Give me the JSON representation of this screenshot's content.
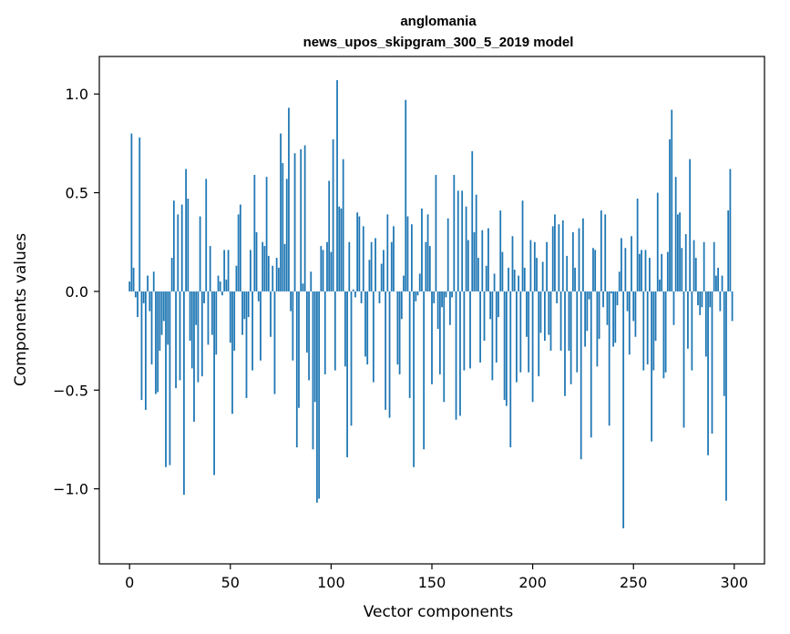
{
  "chart_data": {
    "type": "bar",
    "title_line1": "anglomania",
    "title_line2": "news_upos_skipgram_300_5_2019 model",
    "xlabel": "Vector components",
    "ylabel": "Components values",
    "xlim": [
      -15,
      315
    ],
    "ylim": [
      -1.38,
      1.19
    ],
    "xticks": [
      0,
      50,
      100,
      150,
      200,
      250,
      300
    ],
    "yticks": [
      -1.0,
      -0.5,
      0.0,
      0.5,
      1.0
    ],
    "ytick_labels": [
      "−1.0",
      "−0.5",
      "0.0",
      "0.5",
      "1.0"
    ],
    "grid": false,
    "bar_color": "#1f77b4",
    "values": [
      0.05,
      0.8,
      0.12,
      -0.03,
      -0.13,
      0.78,
      -0.55,
      -0.06,
      -0.6,
      0.08,
      -0.1,
      -0.37,
      0.1,
      -0.52,
      -0.51,
      -0.3,
      -0.22,
      -0.15,
      -0.89,
      -0.27,
      -0.88,
      0.17,
      0.46,
      -0.49,
      0.39,
      -0.45,
      0.44,
      -1.03,
      0.62,
      0.47,
      -0.25,
      -0.39,
      -0.66,
      -0.17,
      -0.46,
      0.38,
      -0.43,
      -0.06,
      0.57,
      -0.27,
      0.23,
      -0.22,
      -0.93,
      -0.32,
      0.08,
      0.05,
      -0.02,
      0.21,
      0.06,
      0.21,
      -0.26,
      -0.62,
      -0.3,
      0.13,
      0.39,
      0.44,
      -0.22,
      -0.14,
      -0.54,
      -0.13,
      0.21,
      -0.4,
      0.59,
      0.3,
      -0.05,
      -0.35,
      0.25,
      0.23,
      0.58,
      0.18,
      -0.23,
      0.13,
      -0.52,
      0.17,
      0.12,
      0.8,
      0.65,
      0.24,
      0.57,
      0.93,
      -0.1,
      -0.35,
      0.7,
      -0.79,
      -0.59,
      0.72,
      0.04,
      0.74,
      -0.31,
      -0.45,
      0.1,
      -0.8,
      -0.56,
      -1.07,
      -1.05,
      0.23,
      0.21,
      -0.42,
      0.25,
      0.56,
      0.2,
      0.77,
      -0.4,
      1.07,
      0.43,
      0.42,
      0.67,
      -0.38,
      -0.84,
      0.25,
      -0.68,
      0.01,
      -0.03,
      0.4,
      0.38,
      -0.06,
      0.33,
      -0.33,
      -0.37,
      0.16,
      0.25,
      -0.46,
      0.27,
      0.0,
      -0.06,
      0.14,
      0.21,
      -0.6,
      0.39,
      -0.64,
      0.25,
      0.33,
      0.0,
      -0.37,
      -0.42,
      -0.14,
      0.08,
      0.97,
      0.38,
      -0.54,
      0.34,
      -0.89,
      -0.05,
      -0.02,
      0.09,
      0.42,
      -0.8,
      0.25,
      0.39,
      0.23,
      -0.47,
      -0.06,
      0.59,
      -0.19,
      -0.42,
      -0.08,
      -0.56,
      -0.03,
      0.37,
      -0.17,
      -0.03,
      0.59,
      -0.65,
      0.51,
      -0.63,
      0.51,
      -0.4,
      0.43,
      0.26,
      -0.39,
      0.71,
      0.3,
      0.49,
      0.17,
      -0.36,
      0.31,
      -0.25,
      0.13,
      0.32,
      -0.14,
      -0.45,
      0.09,
      -0.36,
      -0.13,
      0.41,
      0.2,
      -0.55,
      -0.58,
      0.12,
      -0.79,
      0.28,
      0.11,
      -0.46,
      0.08,
      -0.41,
      0.46,
      0.12,
      -0.23,
      -0.41,
      0.26,
      -0.56,
      0.25,
      0.17,
      -0.43,
      -0.21,
      0.15,
      -0.25,
      0.25,
      -0.22,
      -0.3,
      0.33,
      0.39,
      -0.06,
      0.34,
      -0.3,
      0.36,
      -0.53,
      0.18,
      -0.3,
      -0.47,
      0.3,
      0.12,
      -0.41,
      0.32,
      -0.85,
      0.37,
      -0.28,
      -0.2,
      -0.04,
      -0.74,
      0.22,
      0.21,
      -0.38,
      -0.24,
      0.41,
      -0.08,
      0.39,
      -0.17,
      -0.68,
      -0.01,
      -0.28,
      -0.26,
      -0.07,
      0.1,
      0.27,
      -1.2,
      0.22,
      -0.1,
      -0.32,
      0.28,
      -0.15,
      -0.23,
      0.47,
      0.19,
      0.21,
      -0.4,
      0.21,
      -0.37,
      0.17,
      -0.76,
      -0.4,
      -0.25,
      0.5,
      0.06,
      0.19,
      -0.44,
      -0.41,
      0.2,
      0.77,
      0.92,
      -0.17,
      0.58,
      0.39,
      0.4,
      0.22,
      -0.69,
      0.29,
      -0.29,
      0.67,
      -0.4,
      0.26,
      0.17,
      -0.07,
      -0.12,
      -0.08,
      0.25,
      -0.33,
      -0.83,
      -0.08,
      -0.72,
      0.25,
      0.08,
      0.12,
      -0.1,
      0.08,
      -0.53,
      -1.06,
      0.41,
      0.62,
      -0.15
    ]
  }
}
